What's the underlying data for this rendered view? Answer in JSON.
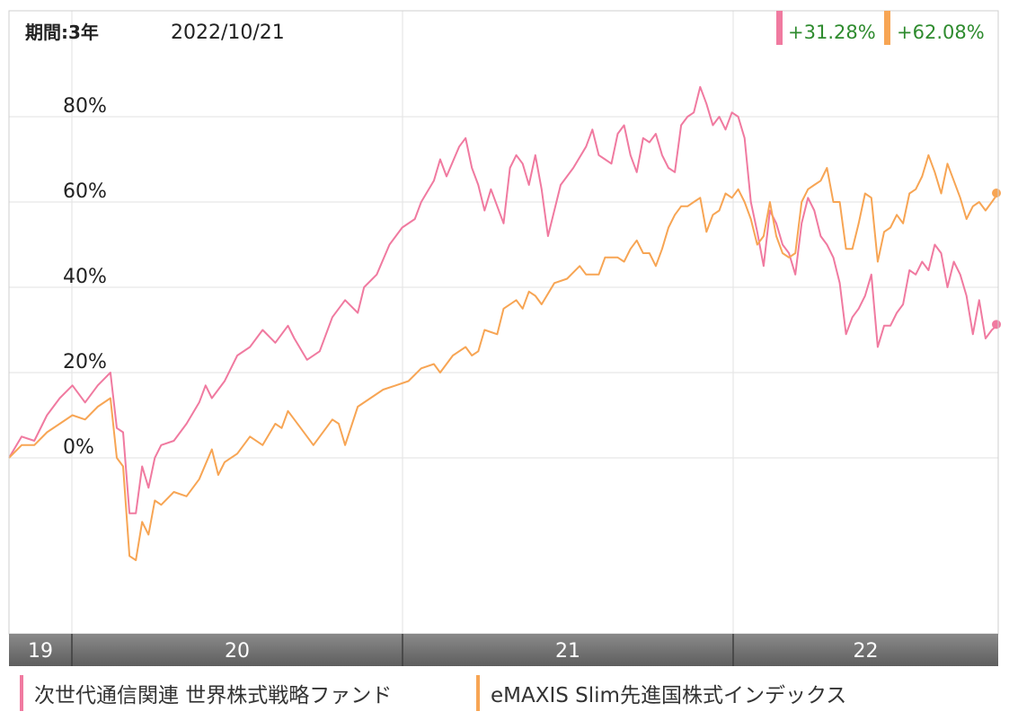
{
  "header": {
    "period_label": "期間:3年",
    "date": "2022/10/21",
    "returns": [
      {
        "value": "+31.28%",
        "color": "#f07aa0"
      },
      {
        "value": "+62.08%",
        "color": "#f7a554"
      }
    ],
    "return_text_color": "#2e8b2e"
  },
  "legend": [
    {
      "label": "次世代通信関連 世界株式戦略ファンド",
      "color": "#f07aa0"
    },
    {
      "label": "eMAXIS Slim先進国株式インデックス",
      "color": "#f7a554"
    }
  ],
  "chart_data": {
    "type": "line",
    "x_unit": "years since 2019-10-21",
    "x_range": [
      0,
      3
    ],
    "y_range": [
      -40,
      100
    ],
    "y_ticks": [
      {
        "value": 0,
        "label": "0%"
      },
      {
        "value": 20,
        "label": "20%"
      },
      {
        "value": 40,
        "label": "40%"
      },
      {
        "value": 60,
        "label": "60%"
      },
      {
        "value": 80,
        "label": "80%"
      }
    ],
    "x_bands": [
      {
        "label": "19",
        "start": 0.0,
        "end": 0.19
      },
      {
        "label": "20",
        "start": 0.19,
        "end": 1.19
      },
      {
        "label": "21",
        "start": 1.19,
        "end": 2.19
      },
      {
        "label": "22",
        "start": 2.19,
        "end": 3.0
      }
    ],
    "grid": true,
    "series": [
      {
        "name": "次世代通信関連 世界株式戦略ファンド",
        "color": "#f07aa0",
        "points": [
          [
            0,
            0
          ],
          [
            0.04,
            5
          ],
          [
            0.08,
            4
          ],
          [
            0.12,
            10
          ],
          [
            0.16,
            14
          ],
          [
            0.2,
            17
          ],
          [
            0.24,
            13
          ],
          [
            0.28,
            17
          ],
          [
            0.32,
            20
          ],
          [
            0.34,
            7
          ],
          [
            0.36,
            6
          ],
          [
            0.38,
            -13
          ],
          [
            0.4,
            -13
          ],
          [
            0.42,
            -2
          ],
          [
            0.44,
            -7
          ],
          [
            0.46,
            0
          ],
          [
            0.48,
            3
          ],
          [
            0.52,
            4
          ],
          [
            0.56,
            8
          ],
          [
            0.6,
            13
          ],
          [
            0.62,
            17
          ],
          [
            0.64,
            14
          ],
          [
            0.68,
            18
          ],
          [
            0.72,
            24
          ],
          [
            0.76,
            26
          ],
          [
            0.8,
            30
          ],
          [
            0.84,
            27
          ],
          [
            0.88,
            31
          ],
          [
            0.9,
            28
          ],
          [
            0.94,
            23
          ],
          [
            0.98,
            25
          ],
          [
            1.02,
            33
          ],
          [
            1.06,
            37
          ],
          [
            1.1,
            34
          ],
          [
            1.12,
            40
          ],
          [
            1.16,
            43
          ],
          [
            1.2,
            50
          ],
          [
            1.24,
            54
          ],
          [
            1.28,
            56
          ],
          [
            1.3,
            60
          ],
          [
            1.34,
            65
          ],
          [
            1.36,
            70
          ],
          [
            1.38,
            66
          ],
          [
            1.42,
            73
          ],
          [
            1.44,
            75
          ],
          [
            1.46,
            68
          ],
          [
            1.48,
            64
          ],
          [
            1.5,
            58
          ],
          [
            1.52,
            63
          ],
          [
            1.56,
            55
          ],
          [
            1.58,
            68
          ],
          [
            1.6,
            71
          ],
          [
            1.62,
            69
          ],
          [
            1.64,
            64
          ],
          [
            1.66,
            71
          ],
          [
            1.68,
            63
          ],
          [
            1.7,
            52
          ],
          [
            1.74,
            64
          ],
          [
            1.78,
            68
          ],
          [
            1.82,
            73
          ],
          [
            1.84,
            77
          ],
          [
            1.86,
            71
          ],
          [
            1.88,
            70
          ],
          [
            1.9,
            69
          ],
          [
            1.92,
            76
          ],
          [
            1.94,
            78
          ],
          [
            1.96,
            71
          ],
          [
            1.98,
            67
          ],
          [
            2.0,
            75
          ],
          [
            2.02,
            74
          ],
          [
            2.04,
            76
          ],
          [
            2.06,
            71
          ],
          [
            2.08,
            68
          ],
          [
            2.1,
            67
          ],
          [
            2.12,
            78
          ],
          [
            2.14,
            80
          ],
          [
            2.16,
            81
          ],
          [
            2.18,
            87
          ],
          [
            2.2,
            83
          ],
          [
            2.22,
            78
          ],
          [
            2.24,
            80
          ],
          [
            2.26,
            77
          ],
          [
            2.28,
            81
          ],
          [
            2.3,
            80
          ],
          [
            2.32,
            75
          ],
          [
            2.34,
            60
          ],
          [
            2.36,
            53
          ],
          [
            2.38,
            45
          ],
          [
            2.4,
            58
          ],
          [
            2.42,
            55
          ],
          [
            2.44,
            50
          ],
          [
            2.46,
            48
          ],
          [
            2.48,
            43
          ],
          [
            2.5,
            55
          ],
          [
            2.52,
            61
          ],
          [
            2.54,
            58
          ],
          [
            2.56,
            52
          ],
          [
            2.58,
            50
          ],
          [
            2.6,
            47
          ],
          [
            2.62,
            41
          ],
          [
            2.64,
            29
          ],
          [
            2.66,
            33
          ],
          [
            2.68,
            35
          ],
          [
            2.7,
            38
          ],
          [
            2.72,
            43
          ],
          [
            2.74,
            26
          ],
          [
            2.76,
            31
          ],
          [
            2.78,
            31
          ],
          [
            2.8,
            34
          ],
          [
            2.82,
            36
          ],
          [
            2.84,
            44
          ],
          [
            2.86,
            43
          ],
          [
            2.88,
            46
          ],
          [
            2.9,
            44
          ],
          [
            2.92,
            50
          ],
          [
            2.94,
            48
          ],
          [
            2.96,
            40
          ],
          [
            2.98,
            46
          ],
          [
            3.0,
            43
          ],
          [
            3.02,
            38
          ],
          [
            3.04,
            29
          ],
          [
            3.06,
            37
          ],
          [
            3.08,
            28
          ],
          [
            3.1,
            30
          ],
          [
            3.12,
            31.3
          ]
        ]
      },
      {
        "name": "eMAXIS Slim先進国株式インデックス",
        "color": "#f7a554",
        "points": [
          [
            0,
            0
          ],
          [
            0.04,
            3
          ],
          [
            0.08,
            3
          ],
          [
            0.12,
            6
          ],
          [
            0.16,
            8
          ],
          [
            0.2,
            10
          ],
          [
            0.24,
            9
          ],
          [
            0.28,
            12
          ],
          [
            0.32,
            14
          ],
          [
            0.34,
            0
          ],
          [
            0.36,
            -2
          ],
          [
            0.38,
            -23
          ],
          [
            0.4,
            -24
          ],
          [
            0.42,
            -15
          ],
          [
            0.44,
            -18
          ],
          [
            0.46,
            -10
          ],
          [
            0.48,
            -11
          ],
          [
            0.52,
            -8
          ],
          [
            0.56,
            -9
          ],
          [
            0.6,
            -5
          ],
          [
            0.64,
            2
          ],
          [
            0.66,
            -4
          ],
          [
            0.68,
            -1
          ],
          [
            0.72,
            1
          ],
          [
            0.76,
            5
          ],
          [
            0.8,
            3
          ],
          [
            0.84,
            8
          ],
          [
            0.86,
            7
          ],
          [
            0.88,
            11
          ],
          [
            0.92,
            7
          ],
          [
            0.96,
            3
          ],
          [
            1.0,
            7
          ],
          [
            1.02,
            9
          ],
          [
            1.04,
            8
          ],
          [
            1.06,
            3
          ],
          [
            1.1,
            12
          ],
          [
            1.14,
            14
          ],
          [
            1.18,
            16
          ],
          [
            1.22,
            17
          ],
          [
            1.26,
            18
          ],
          [
            1.3,
            21
          ],
          [
            1.34,
            22
          ],
          [
            1.36,
            20
          ],
          [
            1.4,
            24
          ],
          [
            1.44,
            26
          ],
          [
            1.46,
            24
          ],
          [
            1.48,
            25
          ],
          [
            1.5,
            30
          ],
          [
            1.54,
            29
          ],
          [
            1.56,
            35
          ],
          [
            1.6,
            37
          ],
          [
            1.62,
            35
          ],
          [
            1.64,
            39
          ],
          [
            1.66,
            38
          ],
          [
            1.68,
            36
          ],
          [
            1.72,
            41
          ],
          [
            1.76,
            42
          ],
          [
            1.8,
            45
          ],
          [
            1.82,
            43
          ],
          [
            1.84,
            43
          ],
          [
            1.86,
            43
          ],
          [
            1.88,
            47
          ],
          [
            1.9,
            47
          ],
          [
            1.92,
            47
          ],
          [
            1.94,
            46
          ],
          [
            1.96,
            49
          ],
          [
            1.98,
            51
          ],
          [
            2.0,
            48
          ],
          [
            2.02,
            48
          ],
          [
            2.04,
            45
          ],
          [
            2.06,
            49
          ],
          [
            2.08,
            54
          ],
          [
            2.1,
            57
          ],
          [
            2.12,
            59
          ],
          [
            2.14,
            59
          ],
          [
            2.16,
            60
          ],
          [
            2.18,
            61
          ],
          [
            2.2,
            53
          ],
          [
            2.22,
            57
          ],
          [
            2.24,
            58
          ],
          [
            2.26,
            62
          ],
          [
            2.28,
            61
          ],
          [
            2.3,
            63
          ],
          [
            2.32,
            60
          ],
          [
            2.34,
            56
          ],
          [
            2.36,
            50
          ],
          [
            2.38,
            52
          ],
          [
            2.4,
            60
          ],
          [
            2.42,
            52
          ],
          [
            2.44,
            48
          ],
          [
            2.46,
            47
          ],
          [
            2.48,
            48
          ],
          [
            2.5,
            60
          ],
          [
            2.52,
            63
          ],
          [
            2.54,
            64
          ],
          [
            2.56,
            65
          ],
          [
            2.58,
            68
          ],
          [
            2.6,
            60
          ],
          [
            2.62,
            60
          ],
          [
            2.64,
            49
          ],
          [
            2.66,
            49
          ],
          [
            2.68,
            55
          ],
          [
            2.7,
            62
          ],
          [
            2.72,
            61
          ],
          [
            2.74,
            46
          ],
          [
            2.76,
            53
          ],
          [
            2.78,
            54
          ],
          [
            2.8,
            57
          ],
          [
            2.82,
            55
          ],
          [
            2.84,
            62
          ],
          [
            2.86,
            63
          ],
          [
            2.88,
            66
          ],
          [
            2.9,
            71
          ],
          [
            2.92,
            67
          ],
          [
            2.94,
            62
          ],
          [
            2.96,
            69
          ],
          [
            2.98,
            65
          ],
          [
            3.0,
            61
          ],
          [
            3.02,
            56
          ],
          [
            3.04,
            59
          ],
          [
            3.06,
            60
          ],
          [
            3.08,
            58
          ],
          [
            3.1,
            60
          ],
          [
            3.12,
            62.1
          ]
        ]
      }
    ]
  }
}
